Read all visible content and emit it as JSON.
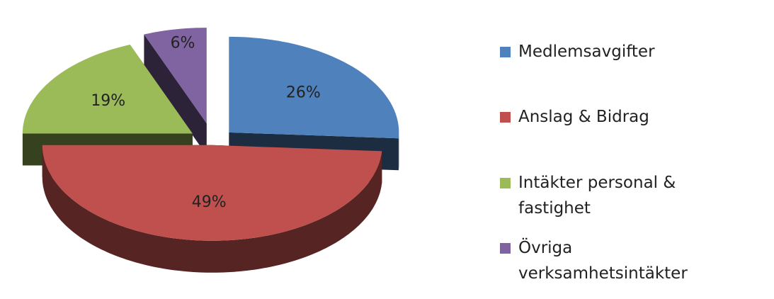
{
  "chart_data": {
    "type": "pie",
    "categories": [
      "Medlemsavgifter",
      "Anslag & Bidrag",
      "Intäkter personal & fastighet",
      "Övriga verksamhetsintäkter"
    ],
    "values": [
      26,
      49,
      19,
      6
    ],
    "value_labels": [
      "26%",
      "49%",
      "19%",
      "6%"
    ],
    "colors": [
      "#4f81bd",
      "#c0504d",
      "#9bbb59",
      "#8064a2"
    ],
    "legend": "right"
  }
}
